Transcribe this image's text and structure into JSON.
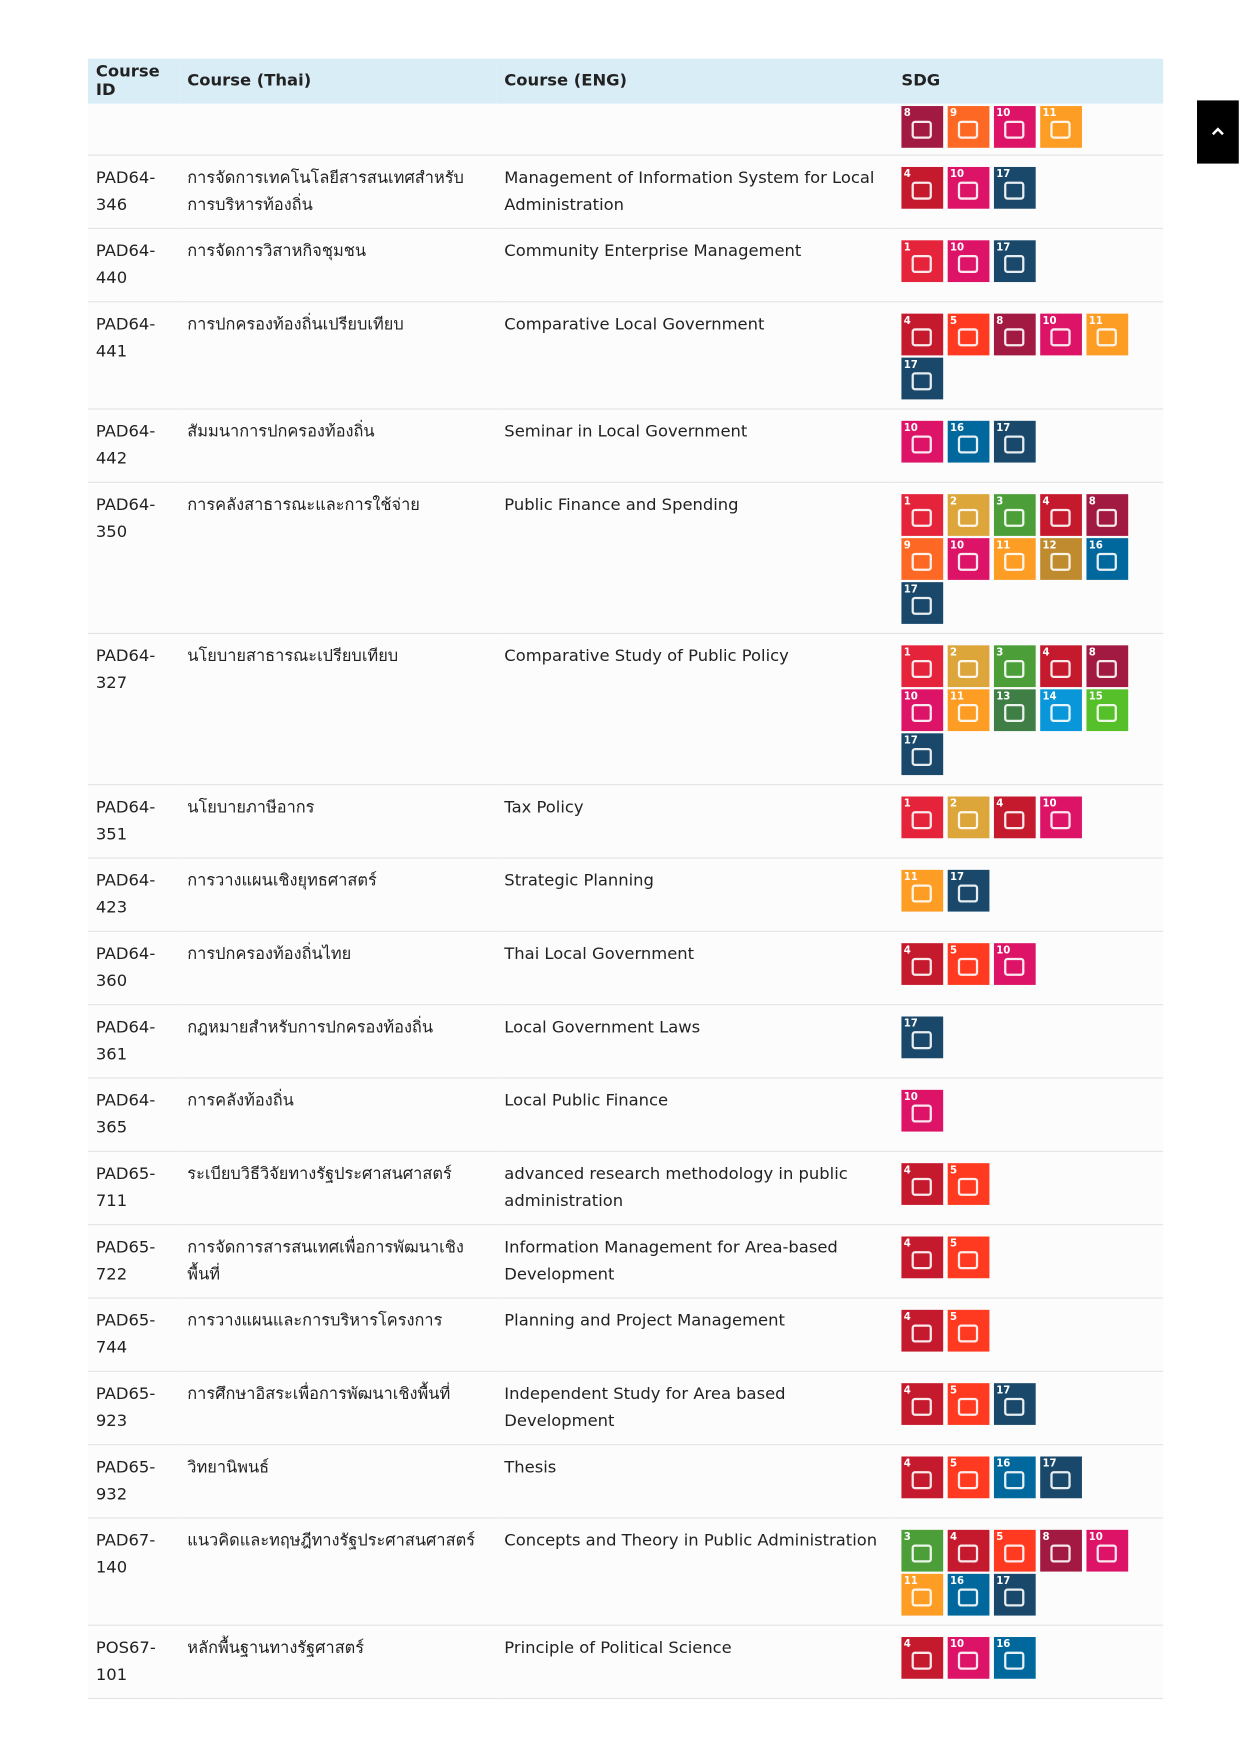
{
  "table": {
    "headers": [
      "Course ID",
      "Course (Thai)",
      "Course (ENG)",
      "SDG"
    ],
    "sdg_colors": {
      "1": "#E5243B",
      "2": "#DDA63A",
      "3": "#4C9F38",
      "4": "#C5192D",
      "5": "#FF3A21",
      "8": "#A21942",
      "9": "#FD6925",
      "10": "#DD1367",
      "11": "#FD9D24",
      "12": "#BF8B2E",
      "13": "#3F7E44",
      "14": "#0A97D9",
      "15": "#56C02B",
      "16": "#00689D",
      "17": "#19486A"
    },
    "rows": [
      {
        "sdg": [
          8,
          9,
          10,
          11
        ]
      },
      {
        "id": "PAD64-346",
        "thai": "การจัดการเทคโนโลยีสารสนเทศสำหรับการบริหารท้องถิ่น",
        "eng": "Management of Information System for Local Administration",
        "sdg": [
          4,
          10,
          17
        ]
      },
      {
        "id": "PAD64-440",
        "thai": "การจัดการวิสาหกิจชุมชน",
        "eng": "Community Enterprise Management",
        "sdg": [
          1,
          10,
          17
        ]
      },
      {
        "id": "PAD64-441",
        "thai": "การปกครองท้องถิ่นเปรียบเทียบ",
        "eng": "Comparative Local Government",
        "sdg": [
          4,
          5,
          8,
          10,
          11,
          17
        ]
      },
      {
        "id": "PAD64-442",
        "thai": "สัมมนาการปกครองท้องถิ่น",
        "eng": "Seminar in Local Government",
        "sdg": [
          10,
          16,
          17
        ]
      },
      {
        "id": "PAD64-350",
        "thai": "การคลังสาธารณะและการใช้จ่าย",
        "eng": "Public Finance and Spending",
        "sdg": [
          1,
          2,
          3,
          4,
          8,
          9,
          10,
          11,
          12,
          16,
          17
        ]
      },
      {
        "id": "PAD64-327",
        "thai": "นโยบายสาธารณะเปรียบเทียบ",
        "eng": "Comparative Study of Public Policy",
        "sdg": [
          1,
          2,
          3,
          4,
          8,
          10,
          11,
          13,
          14,
          15,
          17
        ]
      },
      {
        "id": "PAD64-351",
        "thai": "นโยบายภาษีอากร",
        "eng": "Tax Policy",
        "sdg": [
          1,
          2,
          4,
          10
        ]
      },
      {
        "id": "PAD64-423",
        "thai": "การวางแผนเชิงยุทธศาสตร์",
        "eng": "Strategic Planning",
        "sdg": [
          11,
          17
        ]
      },
      {
        "id": "PAD64-360",
        "thai": "การปกครองท้องถิ่นไทย",
        "eng": "Thai Local Government",
        "sdg": [
          4,
          5,
          10
        ]
      },
      {
        "id": "PAD64-361",
        "thai": "กฎหมายสำหรับการปกครองท้องถิ่น",
        "eng": "Local Government Laws",
        "sdg": [
          17
        ]
      },
      {
        "id": "PAD64-365",
        "thai": "การคลังท้องถิ่น",
        "eng": "Local Public Finance",
        "sdg": [
          10
        ]
      },
      {
        "id": "PAD65-711",
        "thai": "ระเบียบวิธีวิจัยทางรัฐประศาสนศาสตร์",
        "eng": "advanced research methodology in public administration",
        "sdg": [
          4,
          5
        ]
      },
      {
        "id": "PAD65-722",
        "thai": "การจัดการสารสนเทศเพื่อการพัฒนาเชิงพื้นที่",
        "eng": "Information Management for Area-based Development",
        "sdg": [
          4,
          5
        ]
      },
      {
        "id": "PAD65-744",
        "thai": "การวางแผนและการบริหารโครงการ",
        "eng": "Planning and Project Management",
        "sdg": [
          4,
          5
        ]
      },
      {
        "id": "PAD65-923",
        "thai": "การศึกษาอิสระเพื่อการพัฒนาเชิงพื้นที่",
        "eng": "Independent Study for Area based Development",
        "sdg": [
          4,
          5,
          17
        ]
      },
      {
        "id": "PAD65-932",
        "thai": "วิทยานิพนธ์",
        "eng": "Thesis",
        "sdg": [
          4,
          5,
          16,
          17
        ]
      },
      {
        "id": "PAD67-140",
        "thai": "แนวคิดและทฤษฎีทางรัฐประศาสนศาสตร์",
        "eng": "Concepts and Theory in Public Administration",
        "sdg": [
          3,
          4,
          5,
          8,
          10,
          11,
          16,
          17
        ]
      },
      {
        "id": "POS67-101",
        "thai": "หลักพื้นฐานทางรัฐศาสตร์",
        "eng": "Principle of Political Science",
        "sdg": [
          4,
          10,
          16
        ]
      }
    ]
  }
}
